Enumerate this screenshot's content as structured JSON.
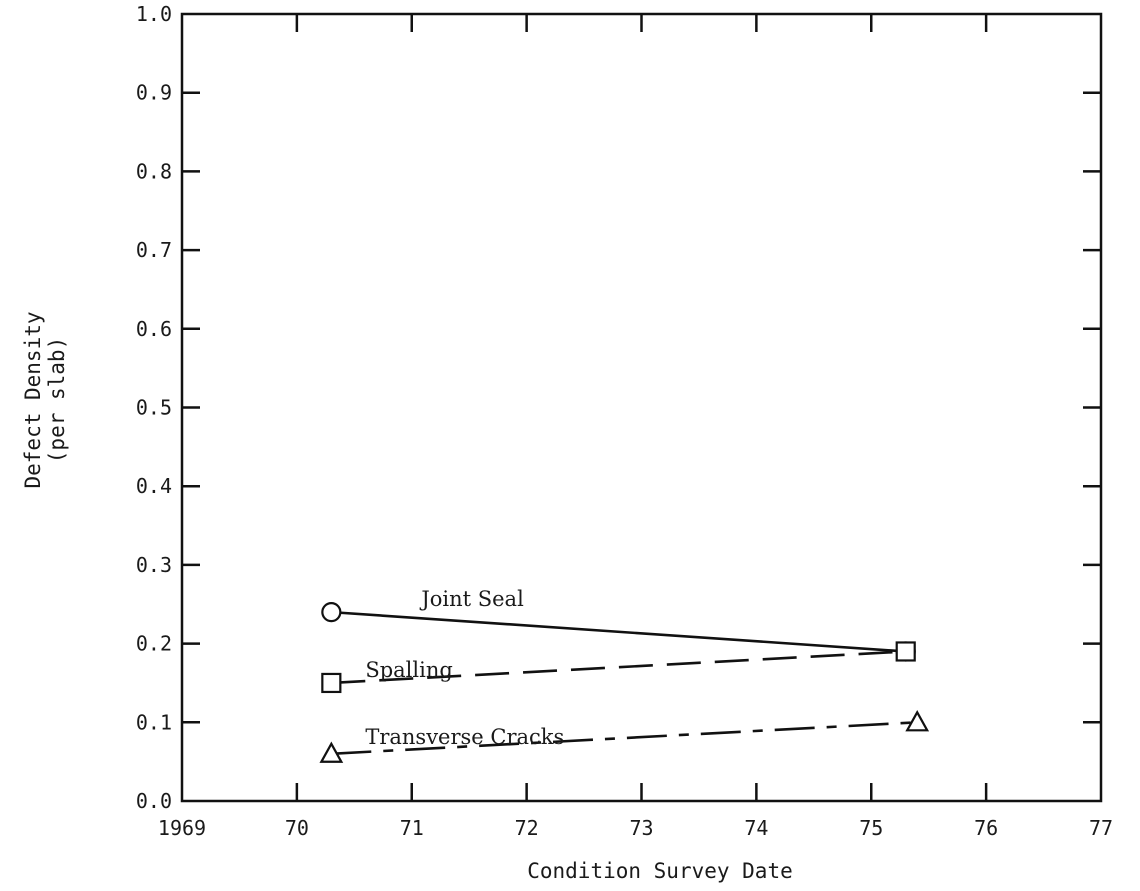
{
  "chart_data": {
    "type": "line",
    "xlabel": "Condition Survey Date",
    "ylabel": "Defect Density",
    "ylabel_sub": "(per slab)",
    "x_ticks": [
      "1969",
      "70",
      "71",
      "72",
      "73",
      "74",
      "75",
      "76",
      "77"
    ],
    "y_ticks": [
      "0.0",
      "0.1",
      "0.2",
      "0.3",
      "0.4",
      "0.5",
      "0.6",
      "0.7",
      "0.8",
      "0.9",
      "1.0"
    ],
    "xlim": [
      1969,
      1977
    ],
    "ylim": [
      0.0,
      1.0
    ],
    "grid": false,
    "legend": "none",
    "series": [
      {
        "name": "Joint Seal",
        "marker": "circle",
        "line": "solid",
        "x": [
          1970.3,
          1975.3
        ],
        "y": [
          0.24,
          0.19
        ]
      },
      {
        "name": "Spalling",
        "marker": "square",
        "line": "dashed",
        "x": [
          1970.3,
          1975.3
        ],
        "y": [
          0.15,
          0.19
        ]
      },
      {
        "name": "Transverse Cracks",
        "marker": "triangle",
        "line": "dash-dot",
        "x": [
          1970.3,
          1975.4
        ],
        "y": [
          0.06,
          0.1
        ]
      }
    ]
  }
}
